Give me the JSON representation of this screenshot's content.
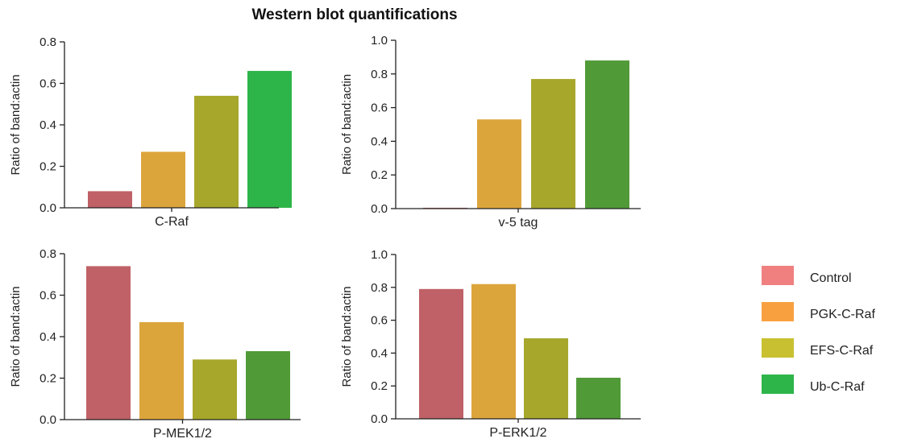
{
  "figure": {
    "title": "Western blot quantifications"
  },
  "legend": [
    {
      "label": "Control",
      "color": "#f08080"
    },
    {
      "label": "PGK-C-Raf",
      "color": "#f8a040"
    },
    {
      "label": "EFS-C-Raf",
      "color": "#c8c030"
    },
    {
      "label": "Ub-C-Raf",
      "color": "#2db54a"
    }
  ],
  "chart_data": [
    {
      "type": "bar",
      "title": "",
      "xlabel": "C-Raf",
      "ylabel": "Ratio of band:actin",
      "categories": [
        "Control",
        "PGK-C-Raf",
        "EFS-C-Raf",
        "Ub-C-Raf"
      ],
      "values": [
        0.08,
        0.27,
        0.54,
        0.66
      ],
      "colors": [
        "#bf6166",
        "#dca53c",
        "#a7a72c",
        "#2db54a"
      ],
      "ylim": [
        0,
        0.8
      ],
      "yticks": [
        "0.0",
        "0.2",
        "0.4",
        "0.6",
        "0.8"
      ]
    },
    {
      "type": "bar",
      "title": "",
      "xlabel": "v-5 tag",
      "ylabel": "Ratio of band:actin",
      "categories": [
        "Control",
        "PGK-C-Raf",
        "EFS-C-Raf",
        "Ub-C-Raf"
      ],
      "values": [
        0.005,
        0.53,
        0.77,
        0.88
      ],
      "colors": [
        "#bf6166",
        "#dca53c",
        "#a7a72c",
        "#519a38"
      ],
      "ylim": [
        0,
        1.0
      ],
      "yticks": [
        "0.0",
        "0.2",
        "0.4",
        "0.6",
        "0.8",
        "1.0"
      ]
    },
    {
      "type": "bar",
      "title": "",
      "xlabel": "P-MEK1/2",
      "ylabel": "Ratio of band:actin",
      "categories": [
        "Control",
        "PGK-C-Raf",
        "EFS-C-Raf",
        "Ub-C-Raf"
      ],
      "values": [
        0.74,
        0.47,
        0.29,
        0.33
      ],
      "colors": [
        "#bf6166",
        "#dca53c",
        "#a7a72c",
        "#519a38"
      ],
      "ylim": [
        0,
        0.8
      ],
      "yticks": [
        "0.0",
        "0.2",
        "0.4",
        "0.6",
        "0.8"
      ]
    },
    {
      "type": "bar",
      "title": "",
      "xlabel": "P-ERK1/2",
      "ylabel": "Ratio of band:actin",
      "categories": [
        "Control",
        "PGK-C-Raf",
        "EFS-C-Raf",
        "Ub-C-Raf"
      ],
      "values": [
        0.79,
        0.82,
        0.49,
        0.25
      ],
      "colors": [
        "#bf6166",
        "#dca53c",
        "#a7a72c",
        "#519a38"
      ],
      "ylim": [
        0,
        1.0
      ],
      "yticks": [
        "0.0",
        "0.2",
        "0.4",
        "0.6",
        "0.8",
        "1.0"
      ]
    }
  ]
}
